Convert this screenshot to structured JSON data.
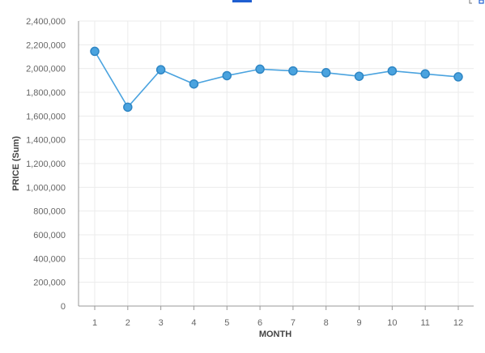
{
  "chart_data": {
    "type": "line",
    "title": "",
    "xlabel": "MONTH",
    "ylabel": "PRICE (Sum)",
    "x": [
      1,
      2,
      3,
      4,
      5,
      6,
      7,
      8,
      9,
      10,
      11,
      12
    ],
    "series": [
      {
        "values": [
          2145000,
          1675000,
          1990000,
          1870000,
          1940000,
          1995000,
          1980000,
          1965000,
          1935000,
          1980000,
          1955000,
          1930000
        ],
        "color": "#4aa3df"
      }
    ],
    "ylim": [
      0,
      2400000
    ],
    "yticks": [
      0,
      200000,
      400000,
      600000,
      800000,
      1000000,
      1200000,
      1400000,
      1600000,
      1800000,
      2000000,
      2200000,
      2400000
    ],
    "ytick_labels": [
      "0",
      "200,000",
      "400,000",
      "600,000",
      "800,000",
      "1,000,000",
      "1,200,000",
      "1,400,000",
      "1,600,000",
      "1,800,000",
      "2,000,000",
      "2,200,000",
      "2,400,000"
    ],
    "xtick_labels": [
      "1",
      "2",
      "3",
      "4",
      "5",
      "6",
      "7",
      "8",
      "9",
      "10",
      "11",
      "12"
    ],
    "grid": true,
    "legend": "none"
  },
  "colors": {
    "series": "#4aa3df",
    "series_stroke": "#2f86c4",
    "grid": "#ebebeb",
    "axis": "#999999",
    "accent_blue": "#1f5fd1"
  }
}
